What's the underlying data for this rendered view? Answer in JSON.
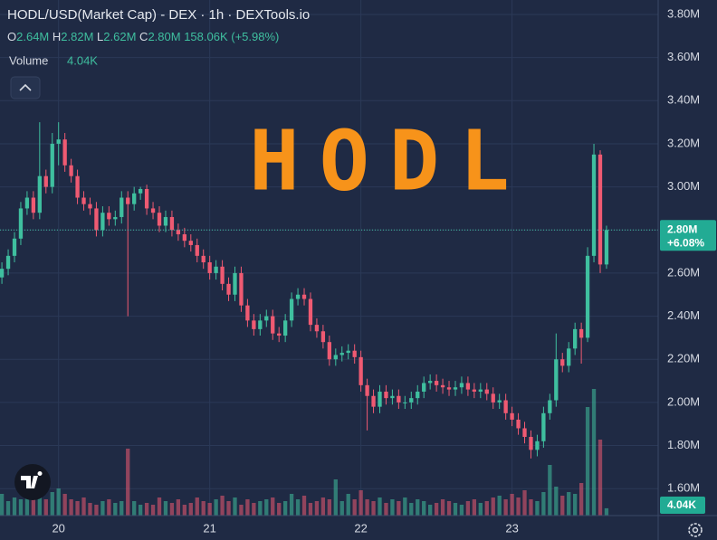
{
  "chart_data": {
    "type": "candlestick",
    "title": "HODL/USD(Market Cap) - DEX · 1h · DEXTools.io",
    "watermark": "HODL",
    "ohlc_legend": [
      {
        "label": "O",
        "value": 2.64,
        "value_label": "2.64M"
      },
      {
        "label": "H",
        "value": 2.82,
        "value_label": "2.82M"
      },
      {
        "label": "L",
        "value": 2.62,
        "value_label": "2.62M"
      },
      {
        "label": "C",
        "value": 2.8,
        "value_label": "2.80M"
      }
    ],
    "change": "158.06K",
    "change_percent": "(+5.98%)",
    "last_price": {
      "value_label": "2.80M",
      "change": "+6.08%"
    },
    "up_color": "#3fbf9f",
    "down_color": "#ef5a72",
    "candles": {
      "open": [
        2.58,
        2.62,
        2.68,
        2.76,
        2.9,
        2.95,
        2.88,
        3.05,
        3.0,
        3.2,
        3.22,
        3.1,
        3.05,
        2.95,
        2.92,
        2.9,
        2.8,
        2.88,
        2.85,
        2.86,
        2.95,
        2.92,
        2.97,
        2.99,
        2.9,
        2.88,
        2.82,
        2.86,
        2.8,
        2.78,
        2.75,
        2.73,
        2.68,
        2.65,
        2.6,
        2.63,
        2.55,
        2.5,
        2.6,
        2.45,
        2.38,
        2.34,
        2.38,
        2.4,
        2.32,
        2.31,
        2.38,
        2.48,
        2.5,
        2.48,
        2.36,
        2.33,
        2.28,
        2.2,
        2.22,
        2.23,
        2.24,
        2.21,
        2.08,
        2.03,
        1.98,
        2.05,
        2.02,
        2.03,
        2.0,
        2.0,
        2.02,
        2.05,
        2.09,
        2.1,
        2.08,
        2.07,
        2.06,
        2.07,
        2.09,
        2.06,
        2.05,
        2.06,
        2.04,
        2.0,
        2.01,
        1.95,
        1.92,
        1.88,
        1.84,
        1.78,
        1.82,
        1.95,
        2.01,
        2.2,
        2.17,
        2.25,
        2.34,
        2.3,
        2.68,
        3.15,
        2.64
      ],
      "high": [
        2.65,
        2.71,
        2.79,
        2.93,
        2.98,
        2.98,
        3.3,
        3.08,
        3.25,
        3.3,
        3.25,
        3.13,
        3.08,
        2.98,
        2.95,
        2.93,
        2.91,
        2.91,
        2.89,
        2.98,
        2.98,
        3.0,
        3.0,
        3.01,
        2.93,
        2.91,
        2.89,
        2.89,
        2.83,
        2.81,
        2.78,
        2.76,
        2.71,
        2.68,
        2.66,
        2.66,
        2.58,
        2.63,
        2.63,
        2.48,
        2.41,
        2.41,
        2.43,
        2.43,
        2.35,
        2.41,
        2.51,
        2.53,
        2.53,
        2.51,
        2.39,
        2.36,
        2.31,
        2.25,
        2.26,
        2.27,
        2.27,
        2.24,
        2.11,
        2.06,
        2.08,
        2.08,
        2.06,
        2.06,
        2.03,
        2.05,
        2.08,
        2.12,
        2.13,
        2.13,
        2.11,
        2.1,
        2.1,
        2.12,
        2.12,
        2.09,
        2.09,
        2.09,
        2.07,
        2.04,
        2.04,
        1.98,
        1.95,
        1.91,
        1.87,
        1.85,
        1.98,
        2.04,
        2.32,
        2.23,
        2.28,
        2.37,
        2.37,
        2.72,
        3.2,
        3.17,
        2.82
      ],
      "low": [
        2.55,
        2.59,
        2.65,
        2.73,
        2.87,
        2.85,
        2.85,
        2.97,
        2.97,
        3.1,
        3.07,
        3.02,
        2.92,
        2.89,
        2.87,
        2.77,
        2.77,
        2.82,
        2.82,
        2.83,
        2.4,
        2.89,
        2.94,
        2.87,
        2.85,
        2.79,
        2.79,
        2.77,
        2.75,
        2.72,
        2.7,
        2.65,
        2.62,
        2.57,
        2.57,
        2.52,
        2.47,
        2.47,
        2.42,
        2.35,
        2.31,
        2.31,
        2.35,
        2.29,
        2.28,
        2.28,
        2.35,
        2.45,
        2.45,
        2.33,
        2.3,
        2.25,
        2.17,
        2.17,
        2.19,
        2.2,
        2.18,
        2.05,
        1.87,
        1.95,
        1.95,
        1.99,
        1.99,
        1.97,
        1.97,
        1.97,
        1.99,
        2.02,
        2.06,
        2.05,
        2.04,
        2.03,
        2.03,
        2.04,
        2.03,
        2.02,
        2.02,
        2.01,
        1.97,
        1.97,
        1.92,
        1.89,
        1.85,
        1.81,
        1.74,
        1.75,
        1.79,
        1.92,
        1.98,
        2.14,
        2.14,
        2.22,
        2.18,
        2.28,
        2.65,
        2.6,
        2.62
      ],
      "close": [
        2.62,
        2.68,
        2.76,
        2.9,
        2.95,
        2.88,
        3.05,
        3.0,
        3.2,
        3.22,
        3.1,
        3.05,
        2.95,
        2.92,
        2.9,
        2.8,
        2.88,
        2.85,
        2.86,
        2.95,
        2.92,
        2.97,
        2.99,
        2.9,
        2.88,
        2.82,
        2.86,
        2.8,
        2.78,
        2.75,
        2.73,
        2.68,
        2.65,
        2.6,
        2.63,
        2.55,
        2.5,
        2.6,
        2.45,
        2.38,
        2.34,
        2.38,
        2.4,
        2.32,
        2.31,
        2.38,
        2.48,
        2.5,
        2.48,
        2.36,
        2.33,
        2.28,
        2.2,
        2.22,
        2.23,
        2.24,
        2.21,
        2.08,
        2.03,
        1.98,
        2.05,
        2.02,
        2.03,
        2.0,
        2.0,
        2.02,
        2.05,
        2.09,
        2.1,
        2.08,
        2.07,
        2.06,
        2.07,
        2.09,
        2.06,
        2.05,
        2.06,
        2.04,
        2.0,
        2.01,
        1.95,
        1.92,
        1.88,
        1.84,
        1.78,
        1.82,
        1.95,
        2.01,
        2.2,
        2.17,
        2.25,
        2.34,
        2.3,
        2.68,
        3.15,
        2.64,
        2.8
      ]
    },
    "volume": {
      "name": "Volume",
      "last_label": "4.04K",
      "ylim": [
        0,
        80
      ],
      "values": [
        12,
        8,
        10,
        9,
        14,
        11,
        10,
        9,
        13,
        15,
        12,
        9,
        8,
        10,
        7,
        6,
        8,
        9,
        7,
        8,
        37,
        8,
        6,
        7,
        6,
        10,
        8,
        7,
        9,
        6,
        7,
        10,
        8,
        7,
        9,
        11,
        8,
        10,
        6,
        9,
        7,
        8,
        9,
        10,
        7,
        8,
        12,
        9,
        11,
        7,
        8,
        10,
        9,
        20,
        8,
        12,
        9,
        14,
        9,
        8,
        10,
        7,
        9,
        8,
        10,
        7,
        9,
        8,
        6,
        7,
        9,
        8,
        7,
        6,
        8,
        9,
        7,
        8,
        10,
        11,
        9,
        12,
        10,
        14,
        9,
        8,
        13,
        28,
        16,
        11,
        13,
        12,
        18,
        60,
        70,
        42,
        4.04
      ]
    },
    "xlim": [
      -0.3,
      104.2
    ],
    "xticks": [
      {
        "value": 9,
        "label": "20"
      },
      {
        "value": 33,
        "label": "21"
      },
      {
        "value": 57,
        "label": "22"
      },
      {
        "value": 81,
        "label": "23"
      }
    ],
    "ylim": [
      1.475,
      3.867
    ],
    "yticks": [
      {
        "value": 1.6,
        "label": "1.60M"
      },
      {
        "value": 1.8,
        "label": "1.80M"
      },
      {
        "value": 2.0,
        "label": "2.00M"
      },
      {
        "value": 2.2,
        "label": "2.20M"
      },
      {
        "value": 2.4,
        "label": "2.40M"
      },
      {
        "value": 2.6,
        "label": "2.60M"
      },
      {
        "value": 2.8,
        "label": "2.80M"
      },
      {
        "value": 3.0,
        "label": "3.00M"
      },
      {
        "value": 3.2,
        "label": "3.20M"
      },
      {
        "value": 3.4,
        "label": "3.40M"
      },
      {
        "value": 3.6,
        "label": "3.60M"
      },
      {
        "value": 3.8,
        "label": "3.80M"
      }
    ],
    "grid": true
  }
}
